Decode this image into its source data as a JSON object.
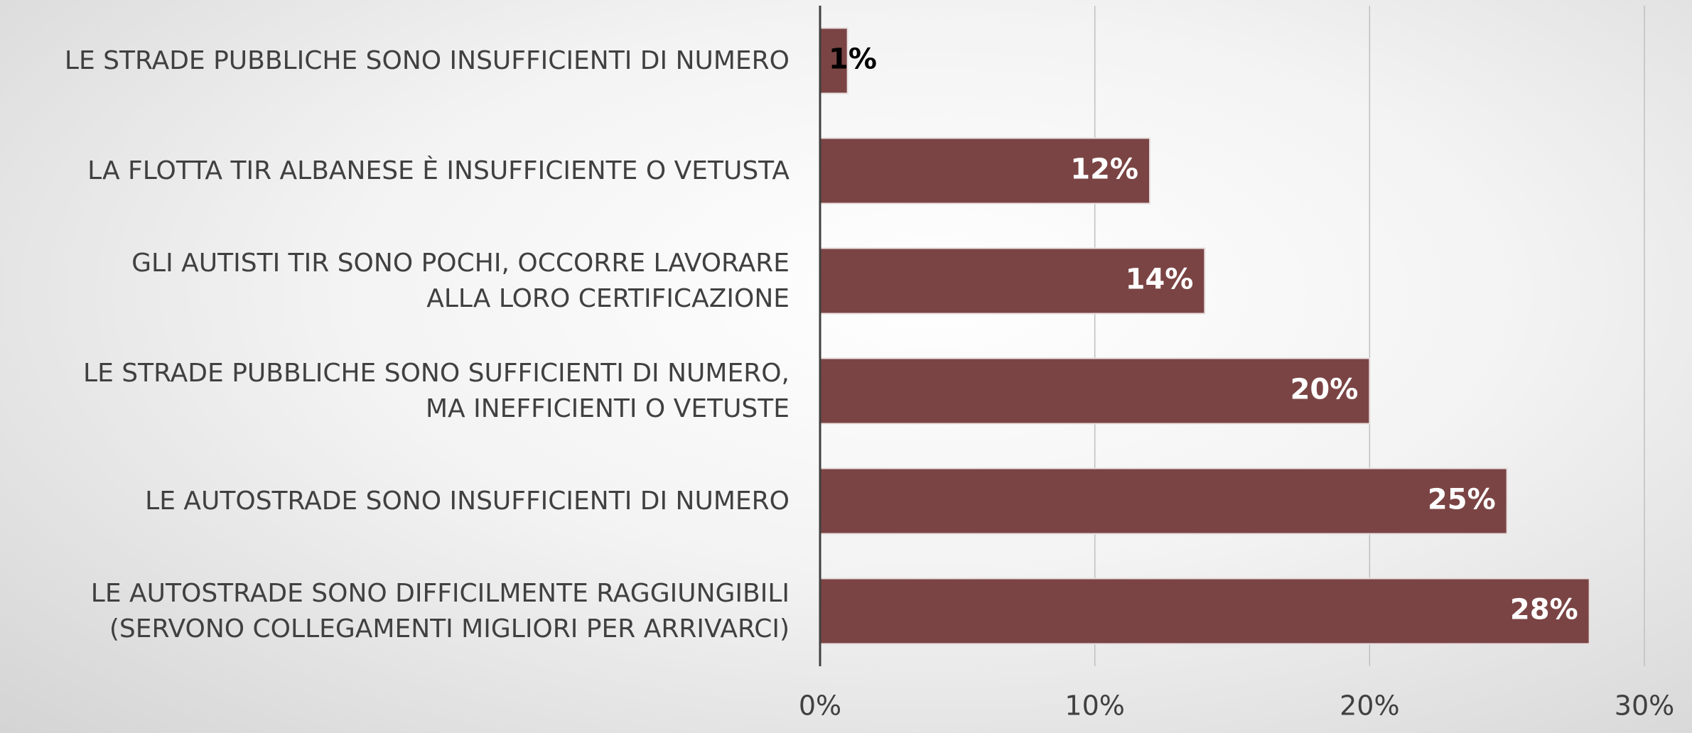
{
  "chart_data": {
    "type": "barh",
    "categories": [
      "LE STRADE PUBBLICHE SONO INSUFFICIENTI DI NUMERO",
      "LA FLOTTA TIR ALBANESE È INSUFFICIENTE O VETUSTA",
      "GLI AUTISTI TIR SONO POCHI, OCCORRE LAVORARE\nALLA LORO CERTIFICAZIONE",
      "LE STRADE PUBBLICHE SONO SUFFICIENTI DI NUMERO,\nMA INEFFICIENTI O VETUSTE",
      "LE AUTOSTRADE SONO INSUFFICIENTI DI NUMERO",
      "LE AUTOSTRADE SONO DIFFICILMENTE RAGGIUNGIBILI\n(SERVONO COLLEGAMENTI MIGLIORI PER ARRIVARCI)"
    ],
    "values": [
      1,
      12,
      14,
      20,
      25,
      28
    ],
    "value_labels": [
      "1%",
      "12%",
      "14%",
      "20%",
      "25%",
      "28%"
    ],
    "color": "#7b4444",
    "xlim": [
      0,
      30
    ],
    "xticks": [
      {
        "value": 0,
        "label": "0%"
      },
      {
        "value": 10,
        "label": "10%"
      },
      {
        "value": 20,
        "label": "20%"
      },
      {
        "value": 30,
        "label": "30%"
      }
    ],
    "grid": true
  }
}
